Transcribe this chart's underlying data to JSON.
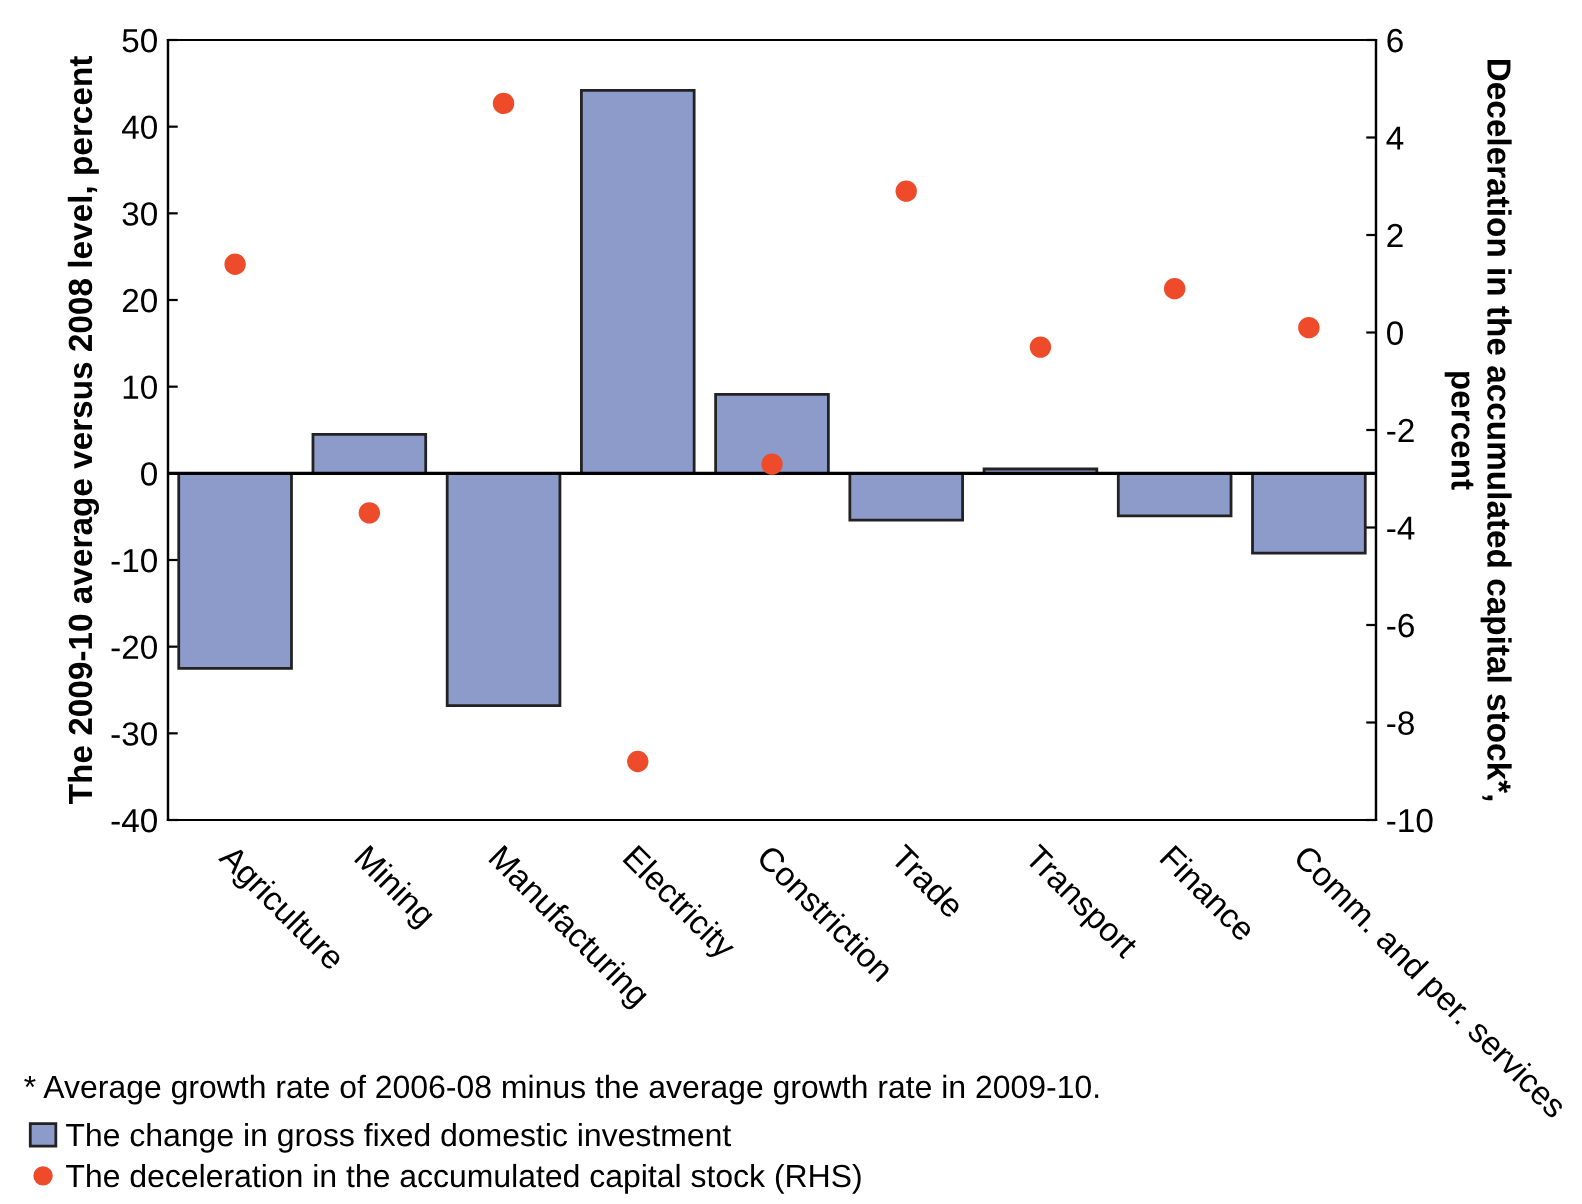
{
  "chart_data": {
    "type": "bar",
    "categories": [
      "Agriculture",
      "Mining",
      "Manufacturing",
      "Electricity",
      "Constriction",
      "Trade",
      "Transport",
      "Finance",
      "Comm. and per. services"
    ],
    "series": [
      {
        "name": "The change in gross fixed domestic investment",
        "color": "#8c9bca",
        "values": [
          -22.5,
          4.5,
          -26.8,
          44.2,
          9.1,
          -5.4,
          0.5,
          -4.9,
          -9.2
        ]
      },
      {
        "name": "The deceleration in the accumulated capital stock (RHS)",
        "type": "scatter",
        "axis": "y2",
        "color": "#ee4b2b",
        "values": [
          1.4,
          -3.7,
          4.7,
          -8.8,
          -2.7,
          2.9,
          -0.3,
          0.9,
          0.1
        ]
      }
    ],
    "ylabel": "The 2009-10 average versus 2008 level, percent",
    "y2label": "Deceleration in the accumulated capital stock*, percent",
    "ylim": [
      -40,
      50
    ],
    "yticks": [
      -40,
      -30,
      -20,
      -10,
      0,
      10,
      20,
      30,
      40,
      50
    ],
    "y2lim": [
      -10,
      6
    ],
    "y2ticks": [
      -10,
      -8,
      -6,
      -4,
      -2,
      0,
      2,
      4,
      6
    ],
    "ref_lines": [
      {
        "axis": "y",
        "value": 0,
        "color": "#000000"
      }
    ],
    "marker": "circle",
    "grid": false,
    "legend": "bottom",
    "annotations": [
      "* Average growth rate of 2006-08 minus the average growth rate in 2009-10."
    ]
  }
}
